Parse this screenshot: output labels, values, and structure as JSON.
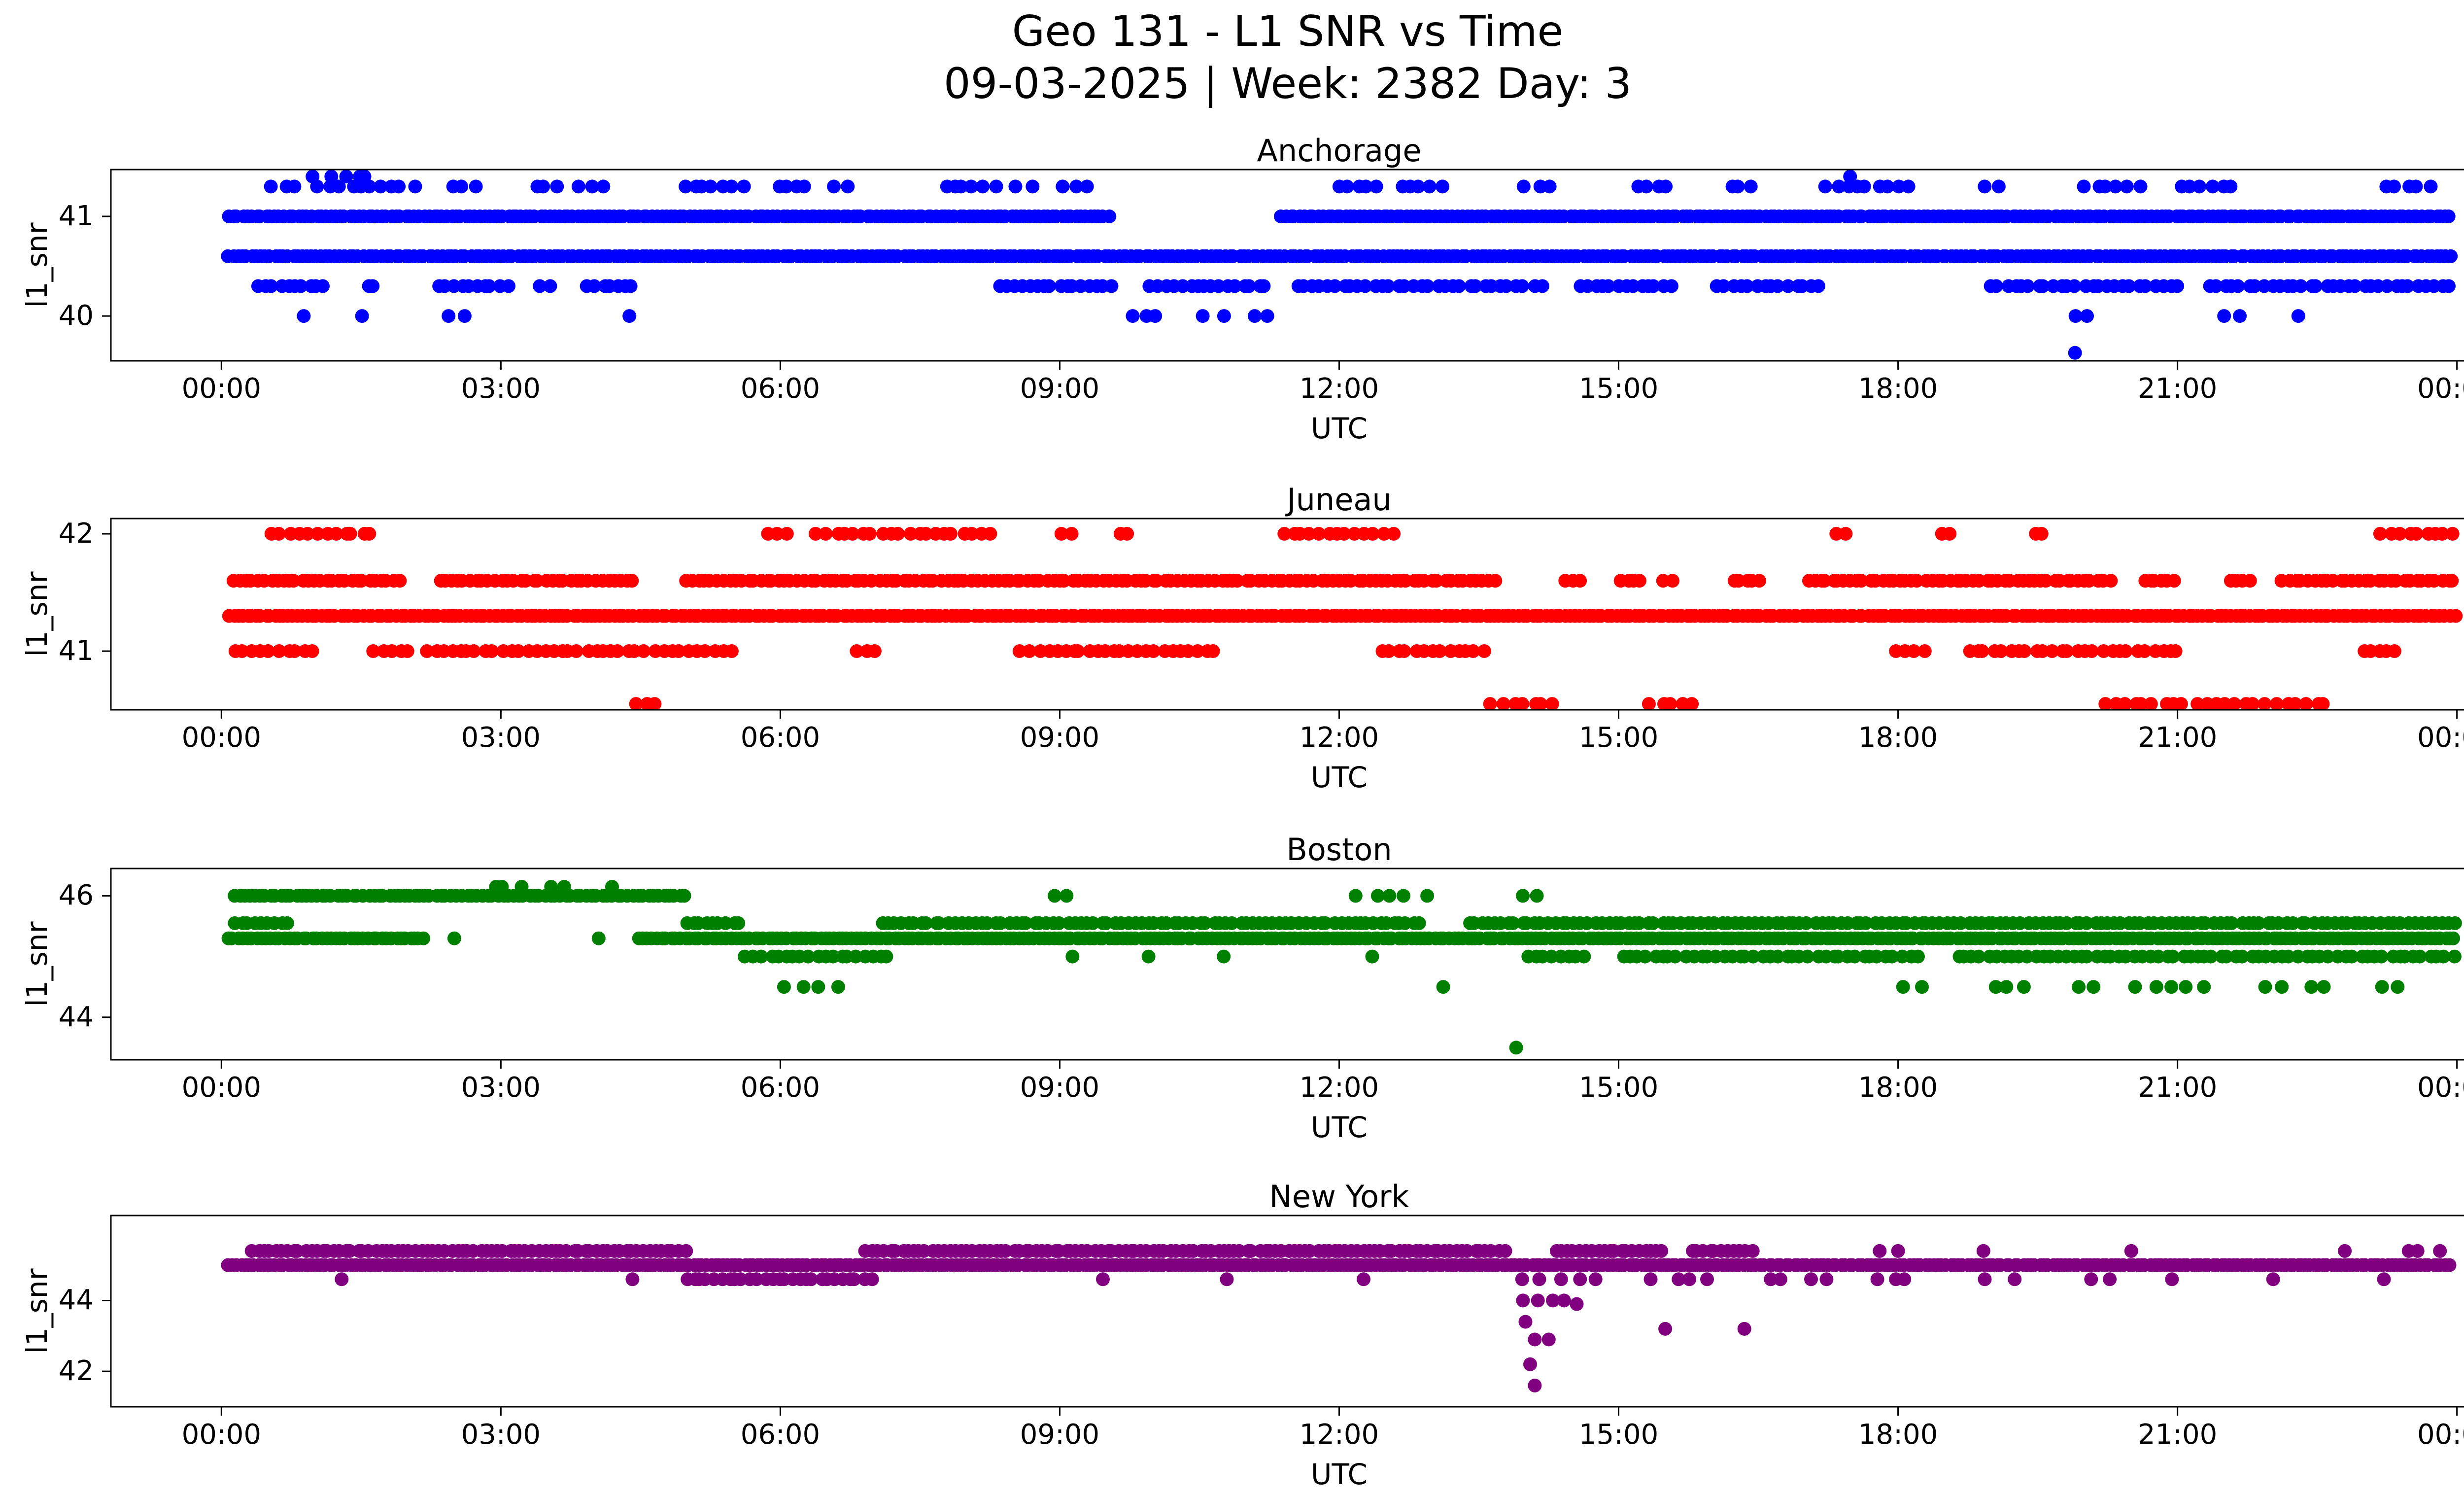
{
  "figure": {
    "title": "Geo 131 - L1 SNR vs Time",
    "subtitle": "09-03-2025 | Week: 2382 Day: 3"
  },
  "chart_data": {
    "type": "scatter",
    "title": "Geo 131 - L1 SNR vs Time",
    "subtitle": "09-03-2025 | Week: 2382 Day: 3",
    "xlabel": "UTC",
    "ylabel": "l1_snr",
    "grid": false,
    "legend_position": "none",
    "x_range_hours": [
      0,
      24
    ],
    "x_ticks_hours": [
      0,
      3,
      6,
      9,
      12,
      15,
      18,
      21,
      24
    ],
    "x_tick_labels": [
      "00:00",
      "03:00",
      "06:00",
      "09:00",
      "12:00",
      "15:00",
      "18:00",
      "21:00",
      "00:00"
    ],
    "subplots": [
      {
        "city": "Anchorage",
        "color": "#0000ff",
        "ylim": [
          39.55,
          41.47
        ],
        "yticks": [
          40,
          41
        ],
        "bands": [
          {
            "snr": 41.4,
            "density": 7,
            "segments": [
              [
                0.95,
                1.65
              ],
              [
                17.45,
                17.6
              ]
            ]
          },
          {
            "snr": 41.3,
            "density": 9,
            "segments": [
              [
                0.5,
                0.85
              ],
              [
                1.0,
                2.1
              ],
              [
                2.4,
                2.75
              ],
              [
                3.3,
                3.65
              ],
              [
                3.8,
                4.15
              ],
              [
                4.9,
                5.65
              ],
              [
                5.9,
                6.35
              ],
              [
                6.5,
                6.75
              ],
              [
                7.7,
                8.35
              ],
              [
                8.5,
                8.75
              ],
              [
                9.0,
                9.35
              ],
              [
                11.95,
                12.45
              ],
              [
                12.6,
                13.15
              ],
              [
                13.95,
                14.3
              ],
              [
                15.15,
                15.55
              ],
              [
                16.15,
                16.45
              ],
              [
                17.15,
                18.2
              ],
              [
                18.85,
                19.1
              ],
              [
                19.95,
                20.65
              ],
              [
                20.95,
                21.65
              ],
              [
                23.15,
                23.75
              ]
            ]
          },
          {
            "snr": 41.0,
            "density": 20,
            "segments": [
              [
                0.05,
                9.55
              ],
              [
                11.35,
                23.95
              ]
            ]
          },
          {
            "snr": 40.6,
            "density": 20,
            "segments": [
              [
                0.05,
                23.95
              ]
            ]
          },
          {
            "snr": 40.3,
            "density": 12,
            "segments": [
              [
                0.35,
                1.15
              ],
              [
                1.5,
                1.7
              ],
              [
                2.3,
                3.1
              ],
              [
                3.35,
                3.55
              ],
              [
                3.9,
                4.45
              ],
              [
                8.3,
                9.6
              ],
              [
                9.95,
                11.25
              ],
              [
                11.5,
                14.2
              ],
              [
                14.55,
                15.6
              ],
              [
                16.0,
                17.2
              ],
              [
                18.95,
                21.05
              ],
              [
                21.3,
                23.95
              ]
            ]
          },
          {
            "snr": 40.0,
            "density": 6,
            "segments": [
              [
                0.8,
                1.0
              ],
              [
                1.4,
                1.55
              ],
              [
                2.4,
                2.65
              ],
              [
                4.35,
                4.5
              ],
              [
                9.65,
                10.15
              ],
              [
                10.5,
                10.85
              ],
              [
                11.0,
                11.3
              ],
              [
                19.85,
                20.1
              ],
              [
                21.45,
                21.7
              ],
              [
                22.15,
                22.35
              ]
            ]
          }
        ],
        "outliers": [
          [
            19.9,
            39.63
          ]
        ]
      },
      {
        "city": "Juneau",
        "color": "#ff0000",
        "ylim": [
          40.5,
          42.13
        ],
        "yticks": [
          41,
          42
        ],
        "bands": [
          {
            "snr": 42.0,
            "density": 10,
            "segments": [
              [
                0.5,
                1.65
              ],
              [
                5.85,
                6.15
              ],
              [
                6.35,
                8.3
              ],
              [
                9.0,
                9.15
              ],
              [
                9.6,
                9.75
              ],
              [
                11.35,
                12.6
              ],
              [
                17.3,
                17.5
              ],
              [
                18.4,
                18.6
              ],
              [
                19.4,
                19.6
              ],
              [
                23.15,
                24.0
              ]
            ]
          },
          {
            "snr": 41.6,
            "density": 15,
            "segments": [
              [
                0.1,
                1.95
              ],
              [
                2.3,
                4.45
              ],
              [
                4.95,
                13.7
              ],
              [
                14.4,
                14.6
              ],
              [
                15.0,
                15.25
              ],
              [
                15.45,
                15.6
              ],
              [
                16.2,
                16.55
              ],
              [
                17.0,
                20.3
              ],
              [
                20.6,
                21.0
              ],
              [
                21.55,
                21.8
              ],
              [
                22.1,
                24.0
              ]
            ]
          },
          {
            "snr": 41.3,
            "density": 20,
            "segments": [
              [
                0.05,
                24.0
              ]
            ]
          },
          {
            "snr": 41.0,
            "density": 11,
            "segments": [
              [
                0.1,
                1.05
              ],
              [
                1.6,
                2.05
              ],
              [
                2.15,
                5.5
              ],
              [
                6.8,
                7.05
              ],
              [
                8.55,
                10.7
              ],
              [
                12.4,
                13.6
              ],
              [
                17.95,
                18.35
              ],
              [
                18.7,
                21.05
              ],
              [
                22.95,
                23.4
              ]
            ]
          },
          {
            "snr": 40.55,
            "density": 9,
            "segments": [
              [
                4.4,
                4.75
              ],
              [
                13.6,
                14.35
              ],
              [
                15.3,
                15.85
              ],
              [
                20.15,
                22.65
              ]
            ]
          }
        ],
        "outliers": []
      },
      {
        "city": "Boston",
        "color": "#008000",
        "ylim": [
          43.3,
          46.45
        ],
        "yticks": [
          44,
          46
        ],
        "bands": [
          {
            "snr": 46.15,
            "density": 7,
            "segments": [
              [
                2.85,
                3.25
              ],
              [
                3.5,
                3.75
              ],
              [
                4.05,
                4.25
              ]
            ]
          },
          {
            "snr": 46.0,
            "density": 18,
            "segments": [
              [
                0.1,
                5.0
              ]
            ]
          },
          {
            "snr": 46.0,
            "density": 6,
            "segments": [
              [
                8.8,
                9.2
              ],
              [
                12.15,
                13.0
              ],
              [
                13.9,
                14.2
              ]
            ]
          },
          {
            "snr": 45.55,
            "density": 14,
            "segments": [
              [
                0.1,
                0.75
              ],
              [
                4.95,
                5.6
              ],
              [
                7.05,
                12.9
              ],
              [
                13.35,
                24.0
              ]
            ]
          },
          {
            "snr": 45.3,
            "density": 20,
            "segments": [
              [
                0.05,
                2.2
              ],
              [
                4.45,
                24.0
              ]
            ]
          },
          {
            "snr": 45.0,
            "density": 12,
            "segments": [
              [
                5.6,
                7.2
              ],
              [
                14.0,
                14.65
              ],
              [
                15.0,
                18.25
              ],
              [
                18.6,
                24.0
              ]
            ]
          },
          {
            "snr": 45.0,
            "density": 5,
            "segments": [
              [
                9.0,
                9.25
              ],
              [
                9.8,
                10.1
              ],
              [
                10.55,
                10.8
              ],
              [
                12.3,
                12.5
              ]
            ]
          },
          {
            "snr": 44.5,
            "density": 6,
            "segments": [
              [
                6.0,
                6.65
              ],
              [
                13.05,
                13.2
              ],
              [
                17.95,
                18.3
              ],
              [
                18.95,
                19.4
              ],
              [
                19.85,
                20.15
              ],
              [
                20.5,
                21.4
              ],
              [
                21.9,
                22.15
              ],
              [
                22.4,
                22.65
              ],
              [
                23.15,
                23.45
              ]
            ]
          }
        ],
        "outliers": [
          [
            13.9,
            43.5
          ],
          [
            2.5,
            45.3
          ],
          [
            4.05,
            45.3
          ]
        ]
      },
      {
        "city": "New York",
        "color": "#800080",
        "ylim": [
          41.0,
          46.4
        ],
        "yticks": [
          42,
          44
        ],
        "bands": [
          {
            "snr": 45.4,
            "density": 16,
            "segments": [
              [
                0.3,
                5.0
              ],
              [
                6.9,
                13.8
              ],
              [
                14.3,
                15.5
              ],
              [
                15.75,
                16.45
              ]
            ]
          },
          {
            "snr": 45.4,
            "density": 5,
            "segments": [
              [
                17.75,
                18.05
              ],
              [
                18.85,
                19.15
              ],
              [
                20.35,
                20.65
              ],
              [
                22.7,
                22.9
              ],
              [
                23.3,
                23.95
              ]
            ]
          },
          {
            "snr": 45.0,
            "density": 22,
            "segments": [
              [
                0.05,
                23.95
              ]
            ]
          },
          {
            "snr": 44.6,
            "density": 13,
            "segments": [
              [
                4.95,
                7.0
              ]
            ]
          },
          {
            "snr": 44.6,
            "density": 5,
            "segments": [
              [
                1.1,
                1.35
              ],
              [
                4.3,
                4.5
              ],
              [
                9.3,
                9.5
              ],
              [
                10.75,
                11.0
              ],
              [
                12.2,
                12.4
              ],
              [
                13.9,
                14.85
              ],
              [
                15.3,
                16.1
              ],
              [
                16.5,
                17.3
              ],
              [
                17.7,
                18.2
              ],
              [
                18.9,
                19.3
              ],
              [
                19.95,
                20.3
              ],
              [
                20.9,
                21.15
              ],
              [
                21.9,
                22.15
              ],
              [
                23.05,
                23.3
              ]
            ]
          },
          {
            "snr": 44.0,
            "density": 6,
            "segments": [
              [
                13.9,
                14.5
              ]
            ]
          }
        ],
        "outliers": [
          [
            14.0,
            43.4
          ],
          [
            14.1,
            42.9
          ],
          [
            14.25,
            42.9
          ],
          [
            14.05,
            42.2
          ],
          [
            14.1,
            41.6
          ],
          [
            15.5,
            43.2
          ],
          [
            16.35,
            43.2
          ],
          [
            14.55,
            43.9
          ]
        ]
      }
    ]
  }
}
